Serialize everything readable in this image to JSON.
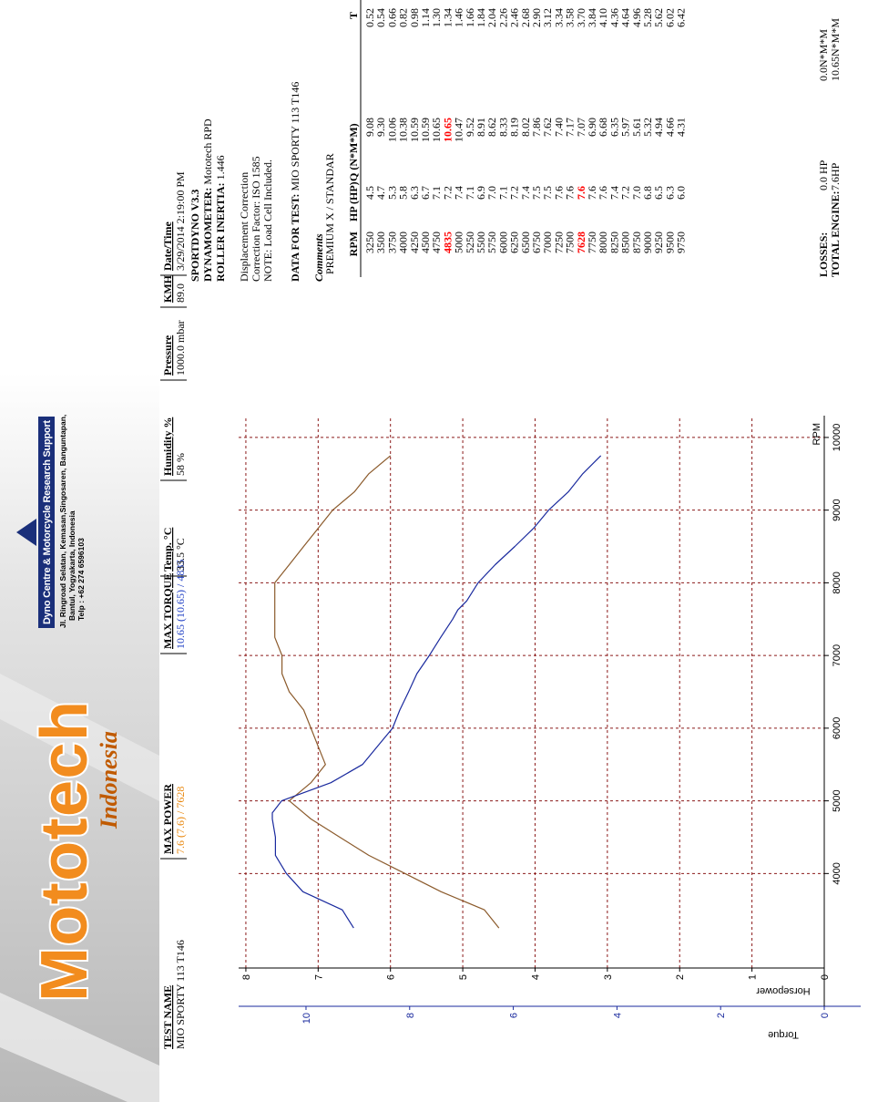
{
  "banner": {
    "logo": "Mototech",
    "logo_sub": "Indonesia",
    "centre_name": "Dyno Centre & Motorcycle Research Support",
    "address": [
      "Jl. Ringroad Selatan, Kemasan,Singosaren, Banguntapan,",
      "Bantul, Yogyakarta, Indonesia",
      "Telp : +62 274 6596103"
    ]
  },
  "summary": {
    "columns": [
      {
        "label": "TEST NAME",
        "value": "MIO SPORTY 113 T146"
      },
      {
        "label": "MAX POWER",
        "value": "7.6 (7.6) / 7628",
        "color": "#e8860c"
      },
      {
        "label": "MAX TORQUE",
        "value": "10.65 (10.65) / 4835",
        "color": "#1f3fc4"
      },
      {
        "label": "Temp. °C",
        "value": "33.5 °C"
      },
      {
        "label": "Humidity %",
        "value": "58 %"
      },
      {
        "label": "Pressure",
        "value": "1000.0 mbar"
      },
      {
        "label": "KMH",
        "value": "89.0"
      },
      {
        "label": "Date/Time",
        "value": "3/29/2014 2:19:00 PM"
      }
    ]
  },
  "info": {
    "lines": [
      {
        "label": "SPORTDYNO V3.3"
      },
      {
        "label": "DYNAMOMETER:",
        "value": "Mototech RPD"
      },
      {
        "label": "ROLLER INERTIA:",
        "value": "1.446"
      }
    ],
    "notes": [
      "Displacement Correction",
      "Correction Factor: ISO 1585",
      "NOTE: Load Cell Included."
    ],
    "test_label": "DATA FOR TEST:",
    "test_value": "MIO SPORTY 113 T146",
    "comments_label": "Comments",
    "comments": "PREMIUM X / STANDAR"
  },
  "data_table": {
    "header": [
      "RPM",
      "HP (HP)",
      "Q (N*M*M)",
      "T"
    ],
    "rows": [
      [
        "3250",
        "4.5",
        "9.08",
        "0.52"
      ],
      [
        "3500",
        "4.7",
        "9.30",
        "0.54"
      ],
      [
        "3750",
        "5.3",
        "10.06",
        "0.66"
      ],
      [
        "4000",
        "5.8",
        "10.38",
        "0.82"
      ],
      [
        "4250",
        "6.3",
        "10.59",
        "0.98"
      ],
      [
        "4500",
        "6.7",
        "10.59",
        "1.14"
      ],
      [
        "4750",
        "7.1",
        "10.65",
        "1.30"
      ],
      [
        "4835",
        "7.2",
        "10.65",
        "1.34"
      ],
      [
        "5000",
        "7.4",
        "10.47",
        "1.46"
      ],
      [
        "5250",
        "7.1",
        "9.52",
        "1.66"
      ],
      [
        "5500",
        "6.9",
        "8.91",
        "1.84"
      ],
      [
        "5750",
        "7.0",
        "8.62",
        "2.04"
      ],
      [
        "6000",
        "7.1",
        "8.33",
        "2.26"
      ],
      [
        "6250",
        "7.2",
        "8.19",
        "2.46"
      ],
      [
        "6500",
        "7.4",
        "8.02",
        "2.68"
      ],
      [
        "6750",
        "7.5",
        "7.86",
        "2.90"
      ],
      [
        "7000",
        "7.5",
        "7.62",
        "3.12"
      ],
      [
        "7250",
        "7.6",
        "7.40",
        "3.34"
      ],
      [
        "7500",
        "7.6",
        "7.17",
        "3.58"
      ],
      [
        "7628",
        "7.6",
        "7.07",
        "3.70"
      ],
      [
        "7750",
        "7.6",
        "6.90",
        "3.84"
      ],
      [
        "8000",
        "7.6",
        "6.68",
        "4.10"
      ],
      [
        "8250",
        "7.4",
        "6.35",
        "4.36"
      ],
      [
        "8500",
        "7.2",
        "5.97",
        "4.64"
      ],
      [
        "8750",
        "7.0",
        "5.61",
        "4.96"
      ],
      [
        "9000",
        "6.8",
        "5.32",
        "5.28"
      ],
      [
        "9250",
        "6.5",
        "4.94",
        "5.62"
      ],
      [
        "9500",
        "6.3",
        "4.66",
        "6.02"
      ],
      [
        "9750",
        "6.0",
        "4.31",
        "6.42"
      ]
    ],
    "red_cells": [
      [
        7,
        0
      ],
      [
        7,
        2
      ],
      [
        19,
        0
      ],
      [
        19,
        1
      ]
    ],
    "red_color": "#ff0000",
    "totals": [
      {
        "label": "LOSSES:",
        "hp": "0.0 HP",
        "q": "0.0N*M*M"
      },
      {
        "label": "TOTAL ENGINE:",
        "hp": "7.6HP",
        "q": "10.65N*M*M"
      }
    ]
  },
  "chart_data": {
    "type": "line",
    "x": [
      3250,
      3500,
      3750,
      4000,
      4250,
      4500,
      4750,
      4835,
      5000,
      5250,
      5500,
      5750,
      6000,
      6250,
      6500,
      6750,
      7000,
      7250,
      7500,
      7628,
      7750,
      8000,
      8250,
      8500,
      8750,
      9000,
      9250,
      9500,
      9750
    ],
    "series": [
      {
        "name": "Horsepower",
        "color": "#8b5a2b",
        "values": [
          4.5,
          4.7,
          5.3,
          5.8,
          6.3,
          6.7,
          7.1,
          7.2,
          7.4,
          7.1,
          6.9,
          7.0,
          7.1,
          7.2,
          7.4,
          7.5,
          7.5,
          7.6,
          7.6,
          7.6,
          7.6,
          7.6,
          7.4,
          7.2,
          7.0,
          6.8,
          6.5,
          6.3,
          6.0
        ]
      },
      {
        "name": "Torque",
        "color": "#1a2a9e",
        "axis": "y2",
        "values": [
          9.08,
          9.3,
          10.06,
          10.38,
          10.59,
          10.59,
          10.65,
          10.65,
          10.47,
          9.52,
          8.91,
          8.62,
          8.33,
          8.19,
          8.02,
          7.86,
          7.62,
          7.4,
          7.17,
          7.07,
          6.9,
          6.68,
          6.35,
          5.97,
          5.61,
          5.32,
          4.94,
          4.66,
          4.31
        ]
      }
    ],
    "xlabel": "RPM",
    "xlim": [
      2700,
      10300
    ],
    "xticks": [
      4000,
      5000,
      6000,
      7000,
      8000,
      9000,
      10000
    ],
    "ylim": [
      0,
      8.1
    ],
    "yticks": [
      0,
      1,
      2,
      3,
      4,
      5,
      6,
      7,
      8
    ],
    "y2lim": [
      0,
      11.3
    ],
    "y2ticks": [
      0,
      2,
      4,
      6,
      8,
      10
    ],
    "grid": true,
    "grid_color": "#8b1a1a"
  }
}
